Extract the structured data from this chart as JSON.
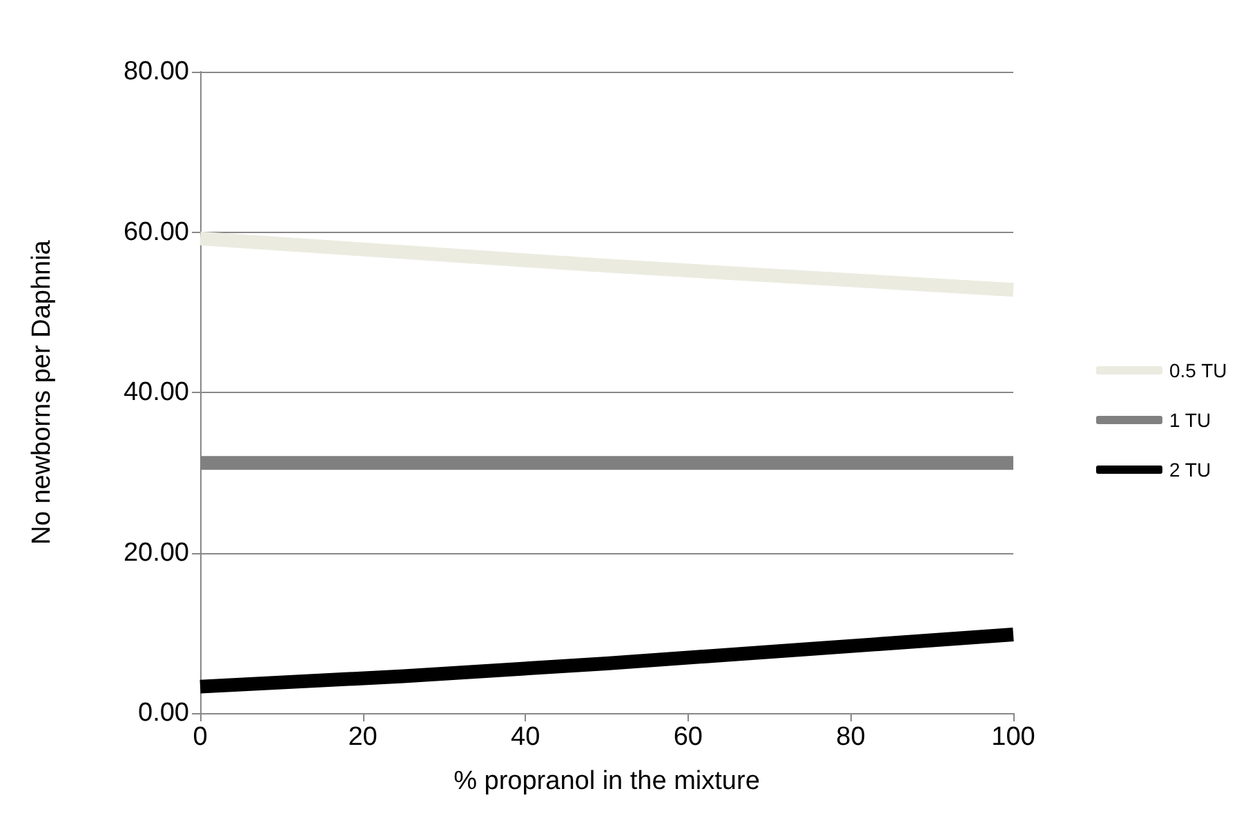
{
  "chart_data": {
    "type": "line",
    "xlabel": "% propranol in the mixture",
    "ylabel": "No newborns per Daphnia",
    "x": [
      0,
      25,
      50,
      75,
      100
    ],
    "series": [
      {
        "name": "0.5 TU",
        "color": "#ebebe0",
        "values": [
          59.2,
          57.5,
          55.8,
          54.3,
          52.8
        ]
      },
      {
        "name": "1 TU",
        "color": "#808080",
        "values": [
          31.2,
          31.2,
          31.2,
          31.2,
          31.2
        ]
      },
      {
        "name": "2 TU",
        "color": "#000000",
        "values": [
          3.3,
          4.6,
          6.2,
          8.0,
          9.8
        ]
      }
    ],
    "xlim": [
      0,
      100
    ],
    "xticks": [
      0,
      20,
      40,
      60,
      80,
      100
    ],
    "ylim": [
      0,
      80
    ],
    "yticks": [
      {
        "value": 0,
        "label": "0.00"
      },
      {
        "value": 20,
        "label": "20.00"
      },
      {
        "value": 40,
        "label": "40.00"
      },
      {
        "value": 60,
        "label": "60.00"
      },
      {
        "value": 80,
        "label": "80.00"
      }
    ],
    "grid": "y",
    "legend": "right",
    "marker": "none",
    "line_style": "solid"
  }
}
